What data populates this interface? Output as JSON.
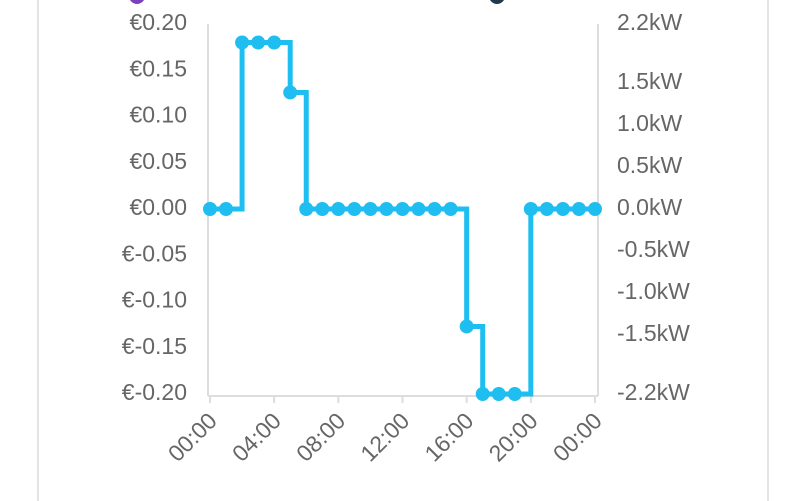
{
  "chart_data": {
    "type": "step",
    "x": [
      0,
      1,
      2,
      3,
      4,
      5,
      6,
      7,
      8,
      9,
      10,
      11,
      12,
      13,
      14,
      15,
      16,
      17,
      18,
      19,
      20,
      21,
      22,
      23,
      24
    ],
    "values": [
      0,
      0,
      0.18,
      0.18,
      0.18,
      0.126,
      0,
      0,
      0,
      0,
      0,
      0,
      0,
      0,
      0,
      0,
      -0.127,
      -0.2,
      -0.2,
      -0.2,
      0,
      0,
      0,
      0,
      0
    ],
    "color": "#1ebff0",
    "xlim": [
      0,
      24
    ],
    "xticks": [
      {
        "value": 0,
        "label": "00:00"
      },
      {
        "value": 4,
        "label": "04:00"
      },
      {
        "value": 8,
        "label": "08:00"
      },
      {
        "value": 12,
        "label": "12:00"
      },
      {
        "value": 16,
        "label": "16:00"
      },
      {
        "value": 20,
        "label": "20:00"
      },
      {
        "value": 24,
        "label": "00:00"
      }
    ],
    "ylim": [
      -0.2,
      0.2
    ],
    "yticks": [
      {
        "value": 0.2,
        "label": "€0.20"
      },
      {
        "value": 0.15,
        "label": "€0.15"
      },
      {
        "value": 0.1,
        "label": "€0.10"
      },
      {
        "value": 0.05,
        "label": "€0.05"
      },
      {
        "value": 0,
        "label": "€0.00"
      },
      {
        "value": -0.05,
        "label": "€-0.05"
      },
      {
        "value": -0.1,
        "label": "€-0.10"
      },
      {
        "value": -0.15,
        "label": "€-0.15"
      },
      {
        "value": -0.2,
        "label": "€-0.20"
      }
    ],
    "y2lim": [
      -2.2,
      2.2
    ],
    "y2ticks": [
      {
        "value": 2.2,
        "label": "2.2kW"
      },
      {
        "value": 1.5,
        "label": "1.5kW"
      },
      {
        "value": 1.0,
        "label": "1.0kW"
      },
      {
        "value": 0.5,
        "label": "0.5kW"
      },
      {
        "value": 0,
        "label": "0.0kW"
      },
      {
        "value": -0.5,
        "label": "-0.5kW"
      },
      {
        "value": -1.0,
        "label": "-1.0kW"
      },
      {
        "value": -1.5,
        "label": "-1.5kW"
      },
      {
        "value": -2.2,
        "label": "-2.2kW"
      }
    ],
    "grid": false
  }
}
